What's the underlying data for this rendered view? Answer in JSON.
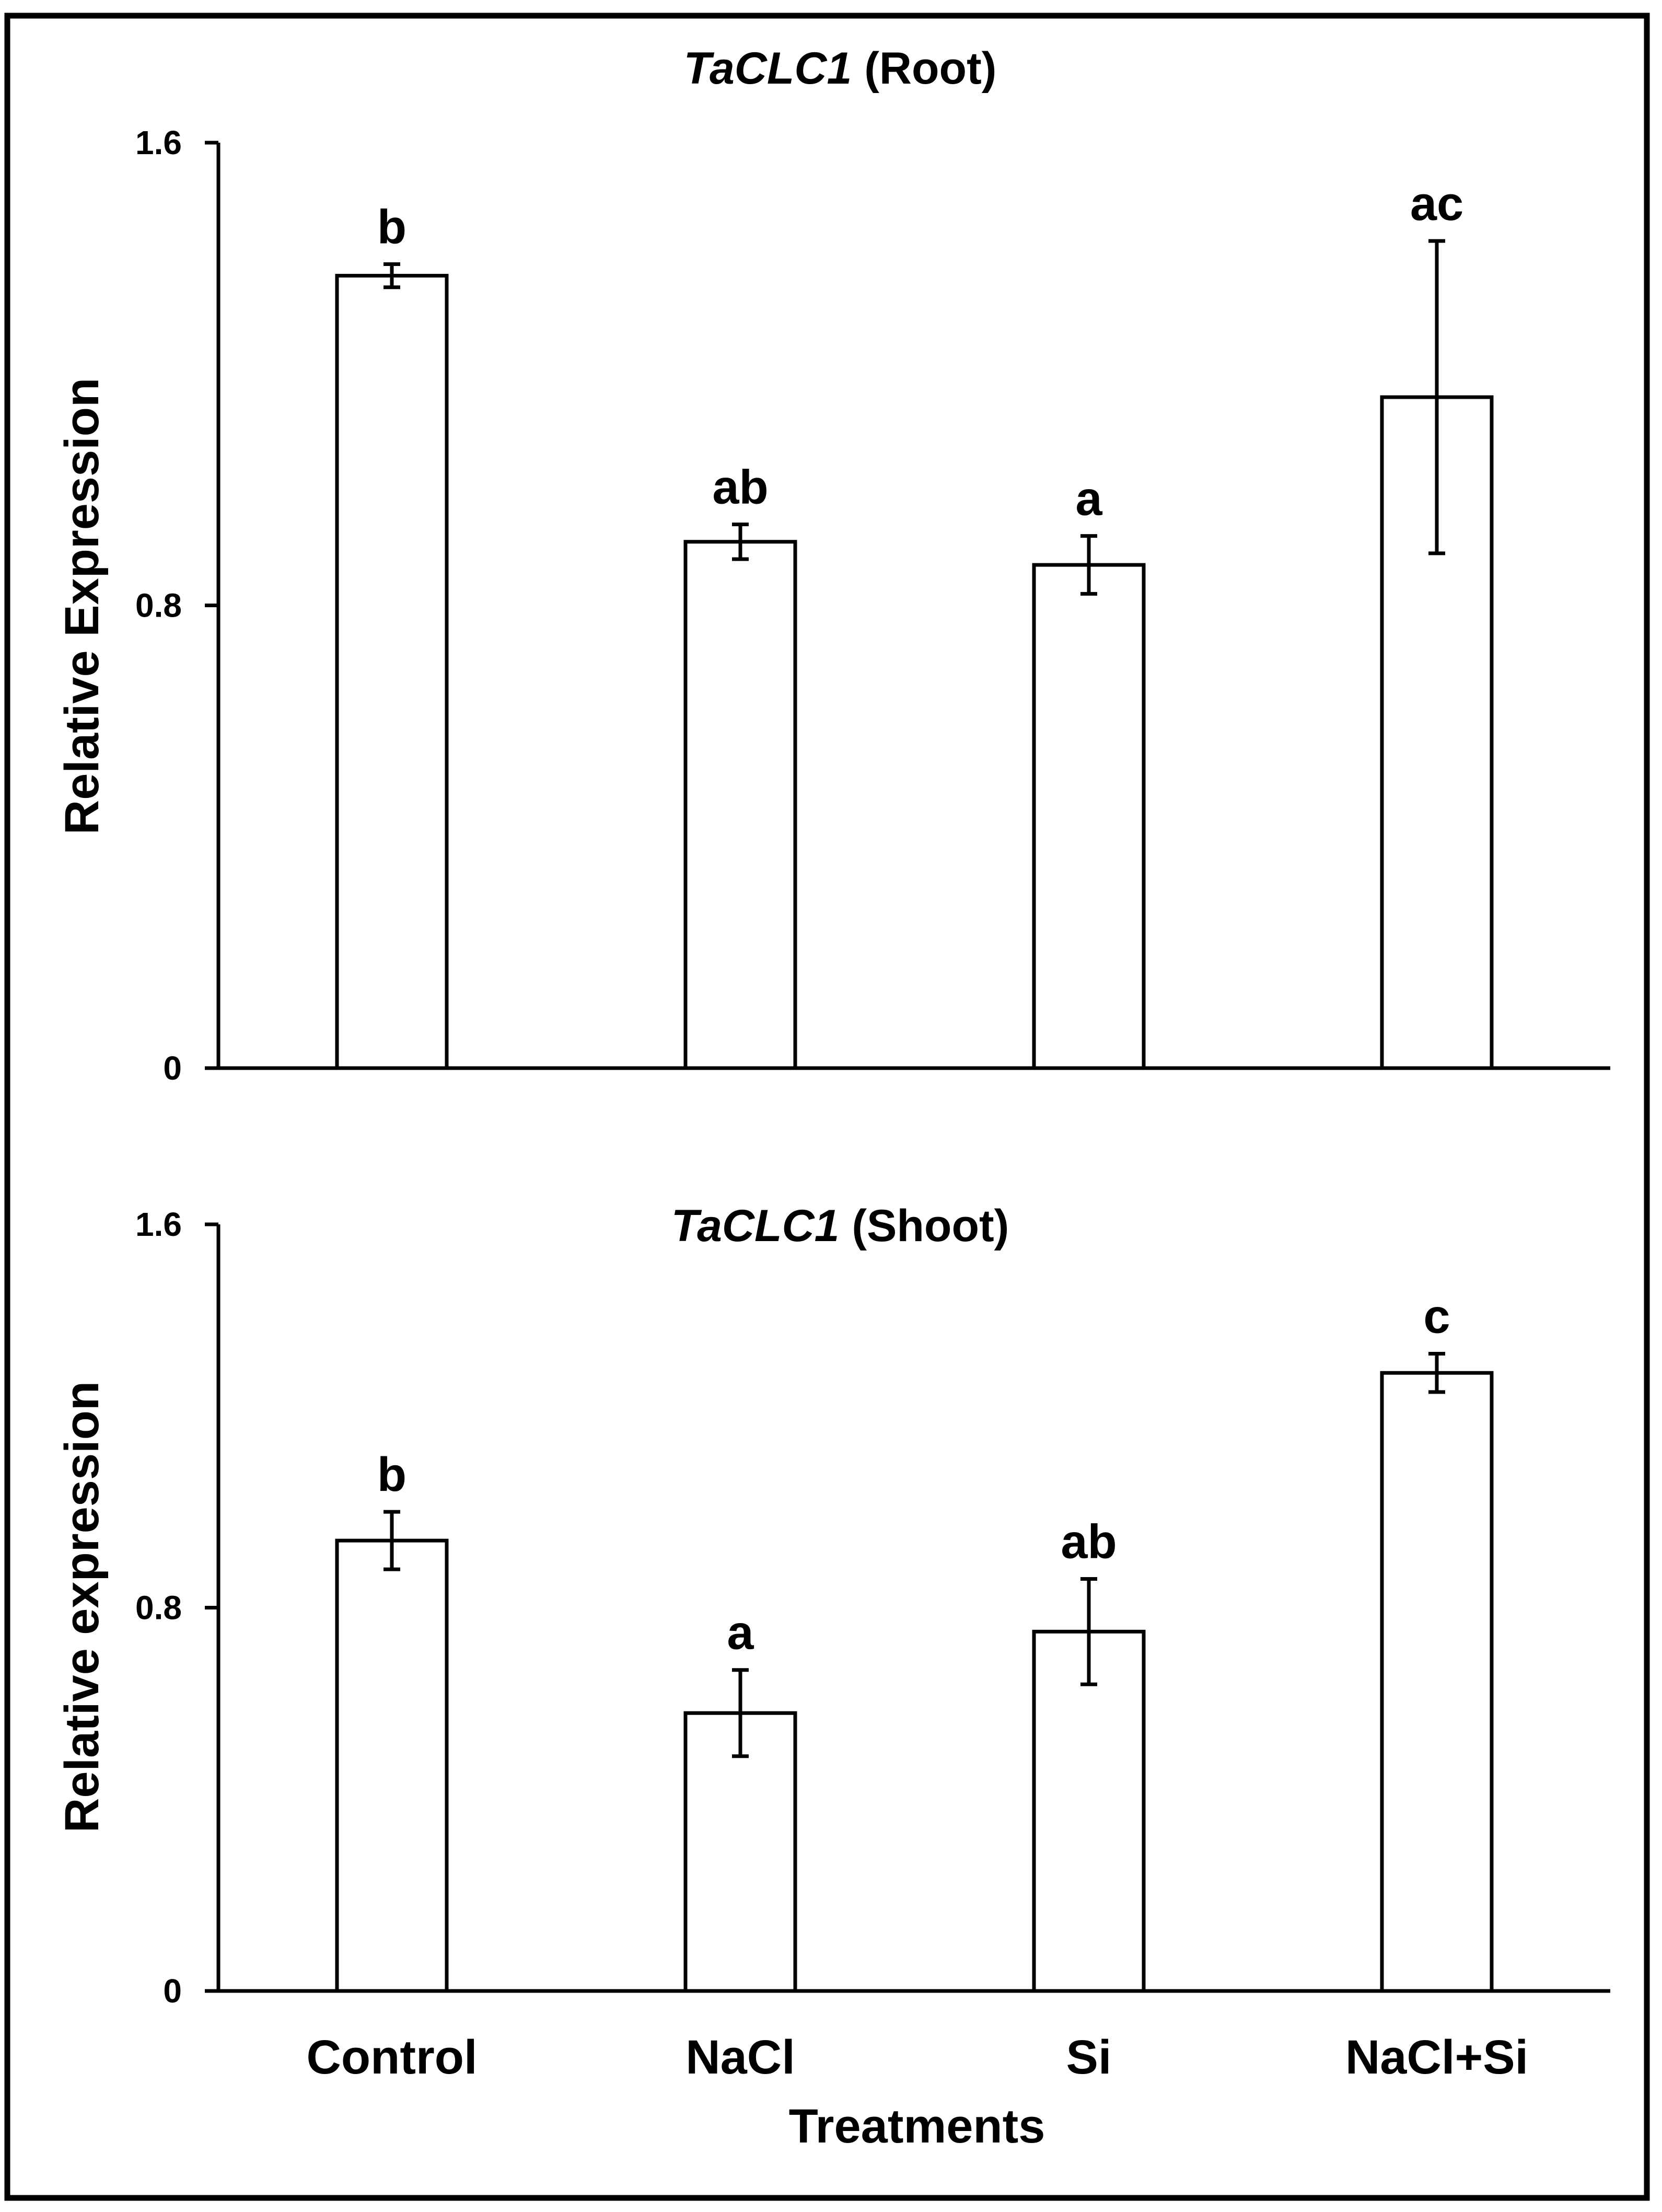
{
  "chart_data": [
    {
      "type": "bar",
      "title": "(Root)",
      "title_italic": "TaCLC1",
      "ylabel": "Relative Expression",
      "xlabel": "",
      "categories": [
        "Control",
        "NaCl",
        "Si",
        "NaCl+Si"
      ],
      "values": [
        1.37,
        0.91,
        0.87,
        1.16
      ],
      "errors": [
        0.02,
        0.03,
        0.05,
        0.27
      ],
      "significance": [
        "b",
        "ab",
        "a",
        "ac"
      ],
      "ylim": [
        0,
        1.6
      ],
      "yticks": [
        "0",
        "0.8",
        "1.6"
      ],
      "grid": false,
      "legend": "none",
      "bar_fill": "#ffffff",
      "bar_stroke": "#000000"
    },
    {
      "type": "bar",
      "title": "(Shoot)",
      "title_italic": "TaCLC1",
      "ylabel": "Relative expression",
      "xlabel": "Treatments",
      "categories": [
        "Control",
        "NaCl",
        "Si",
        "NaCl+Si"
      ],
      "values": [
        0.94,
        0.58,
        0.75,
        1.29
      ],
      "errors": [
        0.06,
        0.09,
        0.11,
        0.04
      ],
      "significance": [
        "b",
        "a",
        "ab",
        "c"
      ],
      "ylim": [
        0,
        1.6
      ],
      "yticks": [
        "0",
        "0.8",
        "1.6"
      ],
      "grid": false,
      "legend": "none",
      "bar_fill": "#ffffff",
      "bar_stroke": "#000000"
    }
  ]
}
